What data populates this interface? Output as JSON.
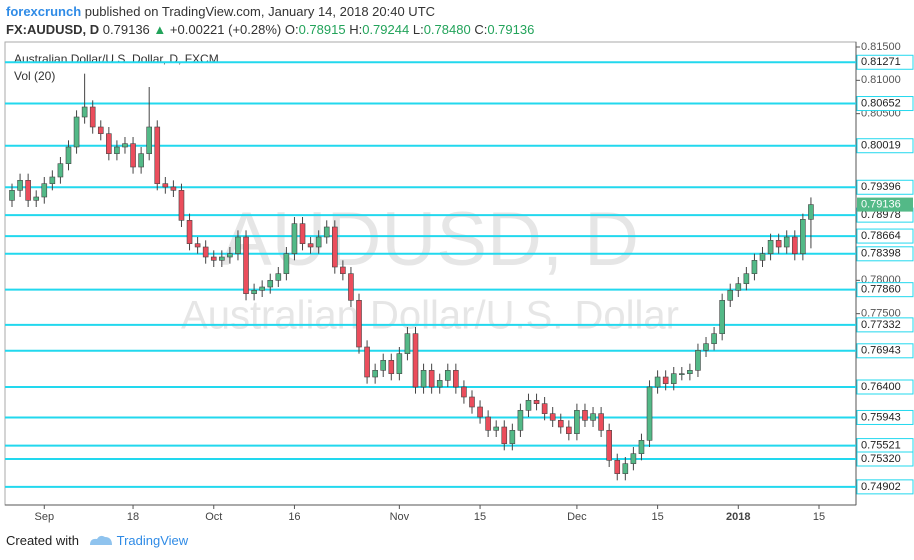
{
  "header": {
    "publisher": "forexcrunch",
    "published": "published on TradingView.com, January 14, 2018 20:40 UTC",
    "symbol": "FX:AUDUSD, D",
    "last": "0.79136",
    "arrow": "▲",
    "change": "+0.00221 (+0.28%)",
    "o_label": "O:",
    "o": "0.78915",
    "h_label": "H:",
    "h": "0.79244",
    "l_label": "L:",
    "l": "0.78480",
    "c_label": "C:",
    "c": "0.79136"
  },
  "chart_data": {
    "type": "candlestick",
    "title": "Australian Dollar/U.S. Dollar, D, FXCM",
    "indicator": "Vol (20)",
    "watermark": [
      "AUDUSD, D",
      "Australian Dollar/U.S. Dollar"
    ],
    "up_color": "#53b987",
    "down_color": "#eb4d5c",
    "categories": [
      null,
      null,
      null,
      null,
      "Sep",
      null,
      null,
      null,
      null,
      null,
      null,
      null,
      null,
      null,
      null,
      "18",
      null,
      null,
      null,
      null,
      null,
      null,
      null,
      null,
      null,
      "Oct",
      null,
      null,
      null,
      null,
      null,
      null,
      null,
      null,
      null,
      "16",
      null,
      null,
      null,
      null,
      null,
      null,
      null,
      null,
      null,
      null,
      null,
      null,
      "Nov",
      null,
      null,
      null,
      null,
      null,
      null,
      null,
      null,
      null,
      "15",
      null,
      null,
      null,
      null,
      null,
      null,
      null,
      null,
      null,
      null,
      null,
      "Dec",
      null,
      null,
      null,
      null,
      null,
      null,
      null,
      null,
      null,
      "15",
      null,
      null,
      null,
      null,
      null,
      null,
      null,
      null,
      null,
      "2018",
      null,
      null,
      null,
      null,
      null,
      null,
      null,
      null,
      null,
      "15"
    ],
    "open": [
      0.792,
      0.7935,
      0.795,
      0.792,
      0.7925,
      0.7945,
      0.7955,
      0.7975,
      0.8,
      0.8045,
      0.806,
      0.803,
      0.802,
      0.799,
      0.8,
      0.8005,
      0.797,
      0.799,
      0.803,
      0.7945,
      0.794,
      0.7935,
      0.789,
      0.7855,
      0.785,
      0.7835,
      0.783,
      0.7835,
      0.784,
      0.7865,
      0.778,
      0.7785,
      0.779,
      0.78,
      0.781,
      0.784,
      0.7885,
      0.7855,
      0.785,
      0.7865,
      0.788,
      0.782,
      0.781,
      0.777,
      0.77,
      0.7655,
      0.7665,
      0.768,
      0.766,
      0.769,
      0.772,
      0.764,
      0.7665,
      0.764,
      0.765,
      0.7665,
      0.764,
      0.7625,
      0.761,
      0.7595,
      0.7575,
      0.758,
      0.7555,
      0.7575,
      0.7605,
      0.762,
      0.7615,
      0.76,
      0.759,
      0.758,
      0.757,
      0.7605,
      0.759,
      0.76,
      0.7575,
      0.753,
      0.751,
      0.7525,
      0.754,
      0.756,
      0.764,
      0.7655,
      0.7645,
      0.766,
      0.766,
      0.7665,
      0.7695,
      0.7705,
      0.772,
      0.777,
      0.7785,
      0.7795,
      0.781,
      0.783,
      0.784,
      0.786,
      0.785,
      0.7865,
      0.784,
      0.78915,
      null
    ],
    "high": [
      0.7945,
      0.796,
      0.796,
      0.7935,
      0.7955,
      0.7965,
      0.7985,
      0.801,
      0.8055,
      0.811,
      0.807,
      0.804,
      0.803,
      0.801,
      0.8015,
      0.8015,
      0.8,
      0.809,
      0.804,
      0.7955,
      0.795,
      0.7945,
      0.79,
      0.7865,
      0.786,
      0.7845,
      0.7845,
      0.785,
      0.7875,
      0.7875,
      0.7795,
      0.78,
      0.781,
      0.782,
      0.785,
      0.7895,
      0.7895,
      0.7865,
      0.7875,
      0.789,
      0.789,
      0.783,
      0.782,
      0.778,
      0.771,
      0.7675,
      0.769,
      0.769,
      0.77,
      0.773,
      0.773,
      0.7675,
      0.7675,
      0.766,
      0.7675,
      0.7675,
      0.765,
      0.7635,
      0.762,
      0.7605,
      0.759,
      0.759,
      0.7585,
      0.7615,
      0.763,
      0.763,
      0.7625,
      0.761,
      0.76,
      0.759,
      0.7615,
      0.7615,
      0.761,
      0.761,
      0.7585,
      0.754,
      0.7535,
      0.755,
      0.757,
      0.765,
      0.7665,
      0.7665,
      0.767,
      0.767,
      0.7675,
      0.7705,
      0.7715,
      0.773,
      0.778,
      0.7795,
      0.7805,
      0.782,
      0.784,
      0.785,
      0.787,
      0.787,
      0.7875,
      0.7875,
      0.79,
      0.79244,
      null
    ],
    "low": [
      0.791,
      0.7925,
      0.791,
      0.791,
      0.7915,
      0.7935,
      0.7945,
      0.7965,
      0.799,
      0.8035,
      0.802,
      0.801,
      0.798,
      0.798,
      0.799,
      0.796,
      0.796,
      0.798,
      0.7935,
      0.793,
      0.7925,
      0.788,
      0.7845,
      0.784,
      0.7825,
      0.782,
      0.782,
      0.7825,
      0.783,
      0.777,
      0.777,
      0.7775,
      0.778,
      0.779,
      0.78,
      0.783,
      0.7845,
      0.784,
      0.784,
      0.7855,
      0.781,
      0.78,
      0.776,
      0.769,
      0.7645,
      0.7645,
      0.7655,
      0.765,
      0.765,
      0.768,
      0.763,
      0.763,
      0.763,
      0.763,
      0.764,
      0.763,
      0.7615,
      0.76,
      0.7585,
      0.7565,
      0.7565,
      0.7545,
      0.7545,
      0.7565,
      0.7595,
      0.7605,
      0.759,
      0.758,
      0.757,
      0.756,
      0.756,
      0.758,
      0.758,
      0.7565,
      0.752,
      0.75,
      0.75,
      0.7515,
      0.753,
      0.755,
      0.763,
      0.7635,
      0.7635,
      0.765,
      0.765,
      0.7655,
      0.7685,
      0.7695,
      0.771,
      0.776,
      0.7775,
      0.7785,
      0.78,
      0.782,
      0.783,
      0.784,
      0.784,
      0.783,
      0.783,
      0.7848,
      null
    ],
    "close": [
      0.7935,
      0.795,
      0.792,
      0.7925,
      0.7945,
      0.7955,
      0.7975,
      0.8,
      0.8045,
      0.806,
      0.803,
      0.802,
      0.799,
      0.8,
      0.8005,
      0.797,
      0.799,
      0.803,
      0.7945,
      0.794,
      0.7935,
      0.789,
      0.7855,
      0.785,
      0.7835,
      0.783,
      0.7835,
      0.784,
      0.7865,
      0.778,
      0.7785,
      0.779,
      0.78,
      0.781,
      0.784,
      0.7885,
      0.7855,
      0.785,
      0.7865,
      0.788,
      0.782,
      0.781,
      0.777,
      0.77,
      0.7655,
      0.7665,
      0.768,
      0.766,
      0.769,
      0.772,
      0.764,
      0.7665,
      0.764,
      0.765,
      0.7665,
      0.764,
      0.7625,
      0.761,
      0.7595,
      0.7575,
      0.758,
      0.7555,
      0.7575,
      0.7605,
      0.762,
      0.7615,
      0.76,
      0.759,
      0.758,
      0.757,
      0.7605,
      0.759,
      0.76,
      0.7575,
      0.753,
      0.751,
      0.7525,
      0.754,
      0.756,
      0.764,
      0.7655,
      0.7645,
      0.766,
      0.766,
      0.7665,
      0.7695,
      0.7705,
      0.772,
      0.777,
      0.7785,
      0.7795,
      0.781,
      0.783,
      0.784,
      0.786,
      0.785,
      0.7865,
      0.784,
      0.78915,
      0.79136,
      null
    ],
    "ylim": [
      0.7463,
      0.81575
    ],
    "yticks": [
      {
        "value": 0.815,
        "label": "0.81500"
      },
      {
        "value": 0.81,
        "label": "0.81000"
      },
      {
        "value": 0.805,
        "label": "0.80500"
      },
      {
        "value": 0.78,
        "label": "0.78000"
      },
      {
        "value": 0.775,
        "label": "0.77500"
      }
    ],
    "levels": {
      "color": "#22d8ee",
      "values": [
        0.81271,
        0.80652,
        0.80019,
        0.79396,
        0.78978,
        0.78664,
        0.78398,
        0.7786,
        0.77332,
        0.76943,
        0.764,
        0.75943,
        0.75521,
        0.7532,
        0.74902
      ],
      "value_labels": [
        "0.81271",
        "0.80652",
        "0.80019",
        "0.79396",
        "0.78978",
        "0.78664",
        "0.78398",
        "0.77860",
        "0.77332",
        "0.76943",
        "0.76400",
        "0.75943",
        "0.75521",
        "0.75320",
        "0.74902"
      ]
    },
    "last_price": {
      "value": 0.79136,
      "label": "0.79136",
      "color": "#53b987"
    }
  },
  "footer": {
    "created": "Created with",
    "brand": "TradingView"
  }
}
